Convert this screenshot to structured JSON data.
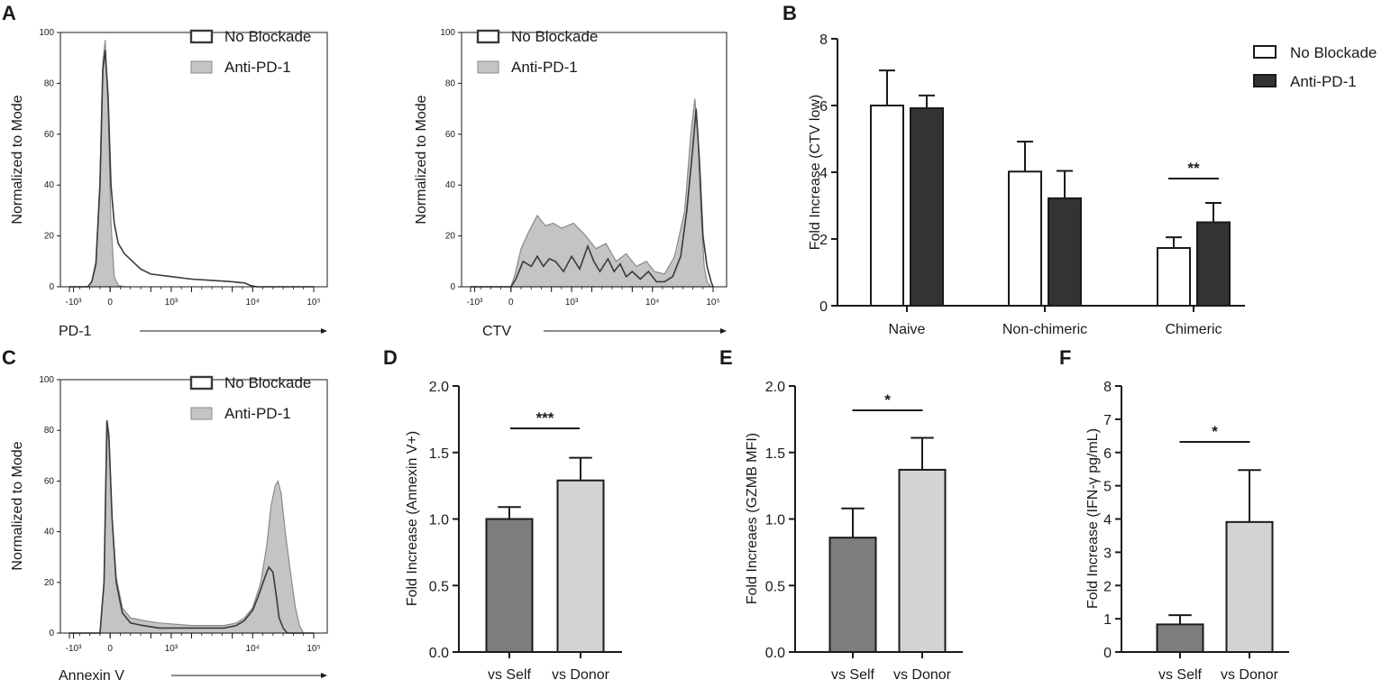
{
  "panels": {
    "A": "A",
    "B": "B",
    "C": "C",
    "D": "D",
    "E": "E",
    "F": "F"
  },
  "legend": {
    "no_blockade": "No Blockade",
    "anti_pd1": "Anti-PD-1"
  },
  "colors": {
    "outline": "#1a1a1a",
    "flow_line": "#3a3a3a",
    "flow_fill": "#c4c4c4",
    "flow_fill_stroke": "#8a8a8a",
    "bar_white": "#ffffff",
    "bar_black": "#333333",
    "bar_dark_gray": "#7d7d7d",
    "bar_light_gray": "#d3d3d4"
  },
  "chart_data": [
    {
      "id": "A1",
      "type": "area",
      "title": "",
      "xlabel": "PD-1",
      "ylabel": "Normalized to Mode",
      "ylim": [
        0,
        100
      ],
      "yticks": [
        "0",
        "20",
        "40",
        "60",
        "80",
        "100"
      ],
      "xtick_labels": [
        "-10³",
        "0",
        "10³",
        "10⁴",
        "10⁵"
      ],
      "series": [
        {
          "name": "Anti-PD-1",
          "style": "filled",
          "x": [
            -1.0,
            -0.55,
            -0.45,
            -0.35,
            -0.25,
            -0.18,
            -0.12,
            -0.05,
            0.02,
            0.1,
            0.2,
            0.35,
            0.5
          ],
          "y": [
            0,
            0,
            2,
            10,
            42,
            88,
            97,
            70,
            25,
            4,
            0.5,
            0,
            0
          ]
        },
        {
          "name": "No Blockade",
          "style": "outline",
          "x": [
            -1.0,
            -0.55,
            -0.45,
            -0.35,
            -0.25,
            -0.18,
            -0.12,
            -0.05,
            0.02,
            0.1,
            0.2,
            0.35,
            0.55,
            0.75,
            1.0,
            1.5,
            2.0,
            2.5,
            3.0,
            3.3,
            3.45,
            3.6,
            4.0,
            5.0
          ],
          "y": [
            0,
            0,
            2,
            9,
            40,
            85,
            93,
            75,
            40,
            25,
            17,
            13,
            10,
            7,
            5,
            4,
            3,
            2.5,
            2,
            1.5,
            0.5,
            0,
            0,
            0
          ]
        }
      ]
    },
    {
      "id": "A2",
      "type": "area",
      "title": "",
      "xlabel": "CTV",
      "ylabel": "Normalized to Mode",
      "ylim": [
        0,
        100
      ],
      "yticks": [
        "0",
        "20",
        "40",
        "60",
        "80",
        "100"
      ],
      "xtick_labels": [
        "-10³",
        "0",
        "10³",
        "10⁴",
        "10⁵"
      ],
      "series": [
        {
          "name": "Anti-PD-1",
          "style": "filled",
          "x": [
            -1.0,
            0.0,
            0.1,
            0.25,
            0.45,
            0.65,
            0.85,
            1.05,
            1.25,
            1.55,
            1.85,
            2.1,
            2.35,
            2.6,
            2.85,
            3.1,
            3.35,
            3.55,
            3.8,
            4.05,
            4.3,
            4.45,
            4.55,
            4.62,
            4.7,
            4.78,
            4.85,
            4.95,
            5.0
          ],
          "y": [
            0,
            0,
            5,
            15,
            22,
            28,
            24,
            25,
            23,
            25,
            20,
            15,
            17,
            10,
            13,
            8,
            10,
            6,
            5,
            12,
            30,
            60,
            74,
            60,
            30,
            8,
            2,
            0,
            0
          ]
        },
        {
          "name": "No Blockade",
          "style": "outline",
          "x": [
            -1.0,
            0.0,
            0.12,
            0.3,
            0.5,
            0.65,
            0.8,
            0.95,
            1.1,
            1.3,
            1.5,
            1.7,
            1.9,
            2.05,
            2.2,
            2.4,
            2.55,
            2.7,
            2.85,
            3.0,
            3.2,
            3.4,
            3.6,
            3.8,
            4.0,
            4.2,
            4.35,
            4.5,
            4.58,
            4.66,
            4.75,
            4.85,
            4.95,
            5.0
          ],
          "y": [
            0,
            0,
            3,
            10,
            8,
            12,
            8,
            11,
            10,
            6,
            12,
            7,
            16,
            10,
            6,
            11,
            6,
            9,
            4,
            6,
            3,
            6,
            2,
            2,
            4,
            12,
            30,
            55,
            70,
            50,
            20,
            8,
            2,
            0
          ]
        }
      ]
    },
    {
      "id": "B",
      "type": "bar",
      "title": "",
      "xlabel": "",
      "ylabel": "Fold Increase (CTV low)",
      "ylim": [
        0,
        8
      ],
      "yticks": [
        "0",
        "2",
        "4",
        "6",
        "8"
      ],
      "categories": [
        "Naive",
        "Non-chimeric",
        "Chimeric"
      ],
      "series": [
        {
          "name": "No Blockade",
          "values": [
            6.0,
            4.02,
            1.73
          ],
          "errors": [
            1.05,
            0.9,
            0.32
          ]
        },
        {
          "name": "Anti-PD-1",
          "values": [
            5.92,
            3.22,
            2.5
          ],
          "errors": [
            0.38,
            0.82,
            0.58
          ]
        }
      ],
      "annotations": [
        {
          "text": "**",
          "group": "Chimeric"
        }
      ]
    },
    {
      "id": "C",
      "type": "area",
      "title": "",
      "xlabel": "Annexin V",
      "ylabel": "Normalized to Mode",
      "ylim": [
        0,
        100
      ],
      "yticks": [
        "0",
        "20",
        "40",
        "60",
        "80",
        "100"
      ],
      "xtick_labels": [
        "-10³",
        "0",
        "10³",
        "10⁴",
        "10⁵"
      ],
      "series": [
        {
          "name": "Anti-PD-1",
          "style": "filled",
          "x": [
            -1.0,
            -0.25,
            -0.15,
            -0.08,
            -0.03,
            0.05,
            0.15,
            0.3,
            0.5,
            0.8,
            1.2,
            1.6,
            2.0,
            2.4,
            2.8,
            3.1,
            3.3,
            3.5,
            3.7,
            3.85,
            3.95,
            4.05,
            4.12,
            4.2,
            4.3,
            4.42,
            4.55,
            4.65,
            4.75,
            5.0
          ],
          "y": [
            0,
            0,
            20,
            80,
            75,
            45,
            22,
            10,
            6,
            5,
            4,
            3.5,
            3,
            3,
            3,
            4,
            6,
            10,
            20,
            35,
            50,
            58,
            60,
            55,
            40,
            25,
            10,
            3,
            0,
            0
          ]
        },
        {
          "name": "No Blockade",
          "style": "outline",
          "x": [
            -1.0,
            -0.25,
            -0.15,
            -0.08,
            -0.03,
            0.05,
            0.15,
            0.3,
            0.5,
            0.8,
            1.2,
            1.6,
            2.0,
            2.4,
            2.8,
            3.1,
            3.3,
            3.5,
            3.65,
            3.8,
            3.9,
            4.0,
            4.08,
            4.15,
            4.25,
            4.35,
            4.5,
            5.0
          ],
          "y": [
            0,
            0,
            20,
            84,
            78,
            45,
            20,
            8,
            4,
            3,
            2,
            2,
            2,
            2,
            2,
            3,
            5,
            9,
            15,
            22,
            26,
            24,
            15,
            6,
            2,
            0,
            0,
            0
          ]
        }
      ]
    },
    {
      "id": "D",
      "type": "bar",
      "title": "",
      "xlabel": "",
      "ylabel": "Fold Increase (Annexin V+)",
      "ylim": [
        0,
        2.0
      ],
      "yticks": [
        "0.0",
        "0.5",
        "1.0",
        "1.5",
        "2.0"
      ],
      "categories": [
        "vs Self",
        "vs Donor"
      ],
      "values": [
        1.0,
        1.29
      ],
      "errors": [
        0.09,
        0.17
      ],
      "annotations": [
        {
          "text": "***"
        }
      ]
    },
    {
      "id": "E",
      "type": "bar",
      "title": "",
      "xlabel": "",
      "ylabel": "Fold Increaes (GZMB MFI)",
      "ylim": [
        0,
        2.0
      ],
      "yticks": [
        "0.0",
        "0.5",
        "1.0",
        "1.5",
        "2.0"
      ],
      "categories": [
        "vs Self",
        "vs Donor"
      ],
      "values": [
        0.86,
        1.37
      ],
      "errors": [
        0.22,
        0.24
      ],
      "annotations": [
        {
          "text": "*"
        }
      ]
    },
    {
      "id": "F",
      "type": "bar",
      "title": "",
      "xlabel": "",
      "ylabel": "Fold Increase (IFN-γ pg/mL)",
      "ylim": [
        0,
        8
      ],
      "yticks": [
        "0",
        "1",
        "2",
        "3",
        "4",
        "5",
        "6",
        "7",
        "8"
      ],
      "categories": [
        "vs Self",
        "vs Donor"
      ],
      "values": [
        0.83,
        3.91
      ],
      "errors": [
        0.28,
        1.56
      ],
      "annotations": [
        {
          "text": "*"
        }
      ]
    }
  ]
}
